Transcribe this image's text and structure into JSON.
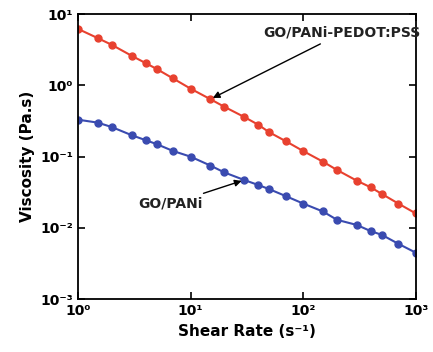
{
  "chart_data": {
    "type": "line",
    "x_label": "Shear Rate (s⁻¹)",
    "y_label": "Viscosity (Pa.s)",
    "log": true,
    "x": [
      1,
      1.5,
      2,
      3,
      4,
      5,
      7,
      10,
      15,
      20,
      30,
      40,
      50,
      70,
      100,
      150,
      200,
      300,
      400,
      500,
      700,
      1000
    ],
    "series": [
      {
        "name": "GO/PANi-PEDOT:PSS",
        "color": "#e8412f",
        "marker": "circle",
        "line_style": "solid",
        "values": [
          6.2,
          4.6,
          3.7,
          2.6,
          2.05,
          1.7,
          1.25,
          0.9,
          0.64,
          0.5,
          0.36,
          0.28,
          0.22,
          0.165,
          0.12,
          0.085,
          0.065,
          0.046,
          0.037,
          0.03,
          0.022,
          0.016
        ]
      },
      {
        "name": "GO/PANi",
        "color": "#3a4bb0",
        "marker": "circle",
        "line_style": "solid",
        "values": [
          0.33,
          0.3,
          0.26,
          0.2,
          0.17,
          0.15,
          0.12,
          0.1,
          0.075,
          0.06,
          0.047,
          0.04,
          0.035,
          0.028,
          0.022,
          0.017,
          0.013,
          0.011,
          0.009,
          0.008,
          0.006,
          0.0045
        ]
      }
    ],
    "xlim": [
      1,
      1000
    ],
    "xticks": [
      {
        "value": 1,
        "label": "10⁰"
      },
      {
        "value": 10,
        "label": "10¹"
      },
      {
        "value": 100,
        "label": "10²"
      },
      {
        "value": 1000,
        "label": "10³"
      }
    ],
    "ylim": [
      0.001,
      10
    ],
    "yticks": [
      {
        "value": 0.001,
        "label": "10⁻³"
      },
      {
        "value": 0.01,
        "label": "10⁻²"
      },
      {
        "value": 0.1,
        "label": "10⁻¹"
      },
      {
        "value": 1,
        "label": "10⁰"
      },
      {
        "value": 10,
        "label": "10¹"
      }
    ]
  }
}
